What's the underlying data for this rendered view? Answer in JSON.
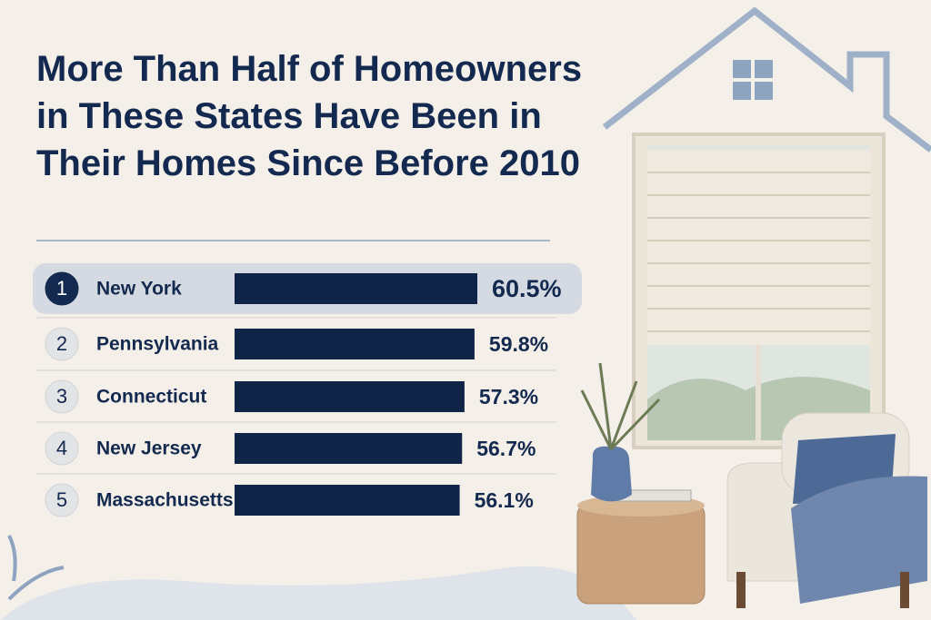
{
  "chart_data": {
    "type": "bar",
    "title": "More Than Half of Homeowners in These States Have Been in Their Homes Since Before 2010",
    "ranks": [
      1,
      2,
      3,
      4,
      5
    ],
    "categories": [
      "New York",
      "Pennsylvania",
      "Connecticut",
      "New Jersey",
      "Massachusetts"
    ],
    "values": [
      60.5,
      59.8,
      57.3,
      56.7,
      56.1
    ],
    "value_labels": [
      "60.5%",
      "59.8%",
      "57.3%",
      "56.7%",
      "56.1%"
    ],
    "color": "#0f2447",
    "highlight": 0
  }
}
